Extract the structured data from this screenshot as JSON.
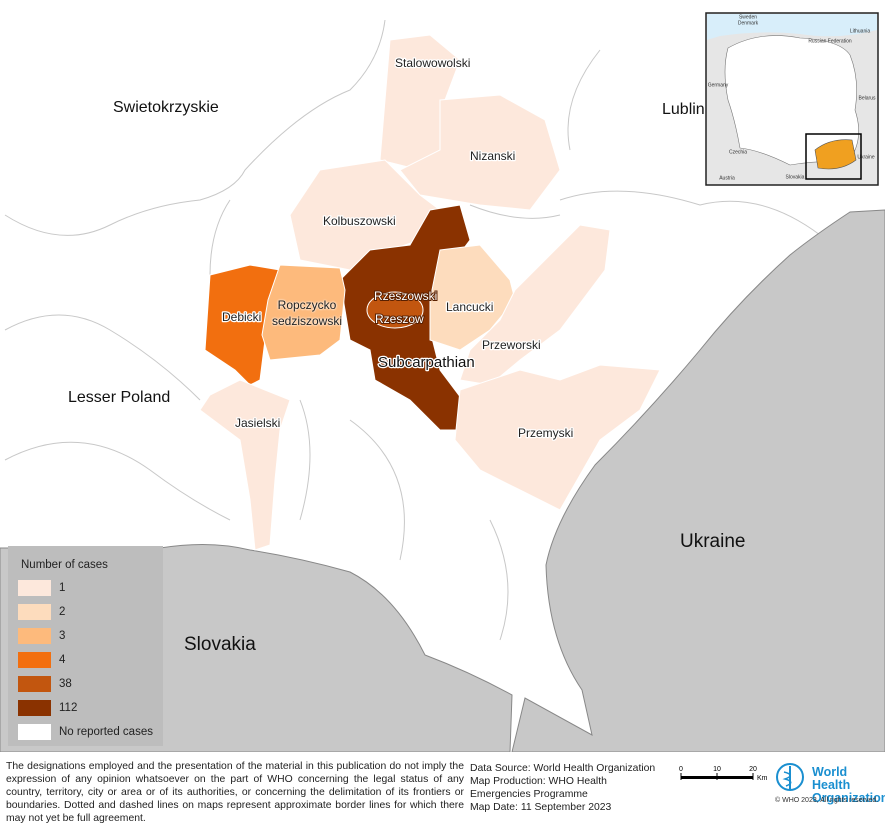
{
  "map": {
    "region_labels": [
      "Swietokrzyskie",
      "Lublin",
      "Lesser Poland"
    ],
    "countries": [
      "Ukraine",
      "Slovakia"
    ],
    "province": "Subcarpathian",
    "districts": [
      {
        "name": "Stalowowolski",
        "cases": 1
      },
      {
        "name": "Nizanski",
        "cases": 1
      },
      {
        "name": "Kolbuszowski",
        "cases": 1
      },
      {
        "name": "Rzeszowski",
        "cases": 112
      },
      {
        "name": "Rzeszow",
        "cases": 38
      },
      {
        "name": "Lancucki",
        "cases": 2
      },
      {
        "name": "Debicki",
        "cases": 4
      },
      {
        "name": "Ropczycko sedziszowski",
        "cases": 3
      },
      {
        "name": "Przeworski",
        "cases": 1
      },
      {
        "name": "Przemyski",
        "cases": 1
      },
      {
        "name": "Jasielski",
        "cases": 1
      }
    ],
    "legend": {
      "title": "Number of cases",
      "values": [
        1,
        2,
        3,
        4,
        38,
        112
      ],
      "colors": [
        "#fde8dc",
        "#fddcbd",
        "#fdba7c",
        "#f26f0f",
        "#c2560f",
        "#8a3200"
      ],
      "no_data_label": "No reported cases",
      "no_data_color": "#ffffff"
    },
    "inset": {
      "labels": [
        "Sweden",
        "Denmark",
        "Lithuania",
        "Russian Federation",
        "Belarus",
        "Germany",
        "Czechia",
        "Slovakia",
        "Austria",
        "Ukraine"
      ]
    }
  },
  "footer": {
    "disclaimer": "The designations employed and the presentation of the material in this publication do not imply the expression of any opinion whatsoever on the part of WHO concerning the legal status of any country, territory, city or area or of its authorities, or concerning the delimitation of its frontiers or boundaries. Dotted and dashed lines on maps represent approximate border lines for which there may not yet be full agreement.",
    "source": [
      "Data Source: World Health Organization",
      "Map Production: WHO Health Emergencies Programme",
      "Map Date: 11 September 2023"
    ],
    "scale": {
      "ticks": [
        0,
        10,
        20
      ],
      "unit": "Km"
    },
    "logo": "World Health Organization",
    "copyright": "© WHO  2023, All rights reserved."
  }
}
